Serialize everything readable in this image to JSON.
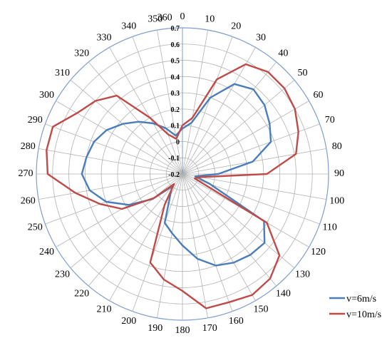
{
  "chart_data": {
    "type": "radar",
    "categories": [
      "0",
      "10",
      "20",
      "30",
      "40",
      "50",
      "60",
      "70",
      "80",
      "90",
      "100",
      "110",
      "120",
      "130",
      "140",
      "150",
      "160",
      "170",
      "180",
      "190",
      "200",
      "210",
      "220",
      "230",
      "240",
      "250",
      "260",
      "270",
      "280",
      "290",
      "300",
      "310",
      "320",
      "330",
      "340",
      "350",
      "360"
    ],
    "radial_ticks": [
      "-0.2",
      "-0.1",
      "0",
      "0.1",
      "0.2",
      "0.3",
      "0.4",
      "0.5",
      "0.6",
      "0.7"
    ],
    "rlim": [
      -0.2,
      0.7
    ],
    "grid": true,
    "legend_position": "bottom-right",
    "series": [
      {
        "name": "v=6m/s",
        "color": "#4a7ebb",
        "values": [
          0.08,
          0.12,
          0.3,
          0.44,
          0.48,
          0.46,
          0.42,
          0.38,
          0.24,
          0.02,
          -0.12,
          -0.02,
          0.38,
          0.46,
          0.45,
          0.43,
          0.4,
          0.33,
          0.24,
          0.17,
          0.12,
          -0.05,
          -0.1,
          0.04,
          0.18,
          0.3,
          0.38,
          0.42,
          0.4,
          0.38,
          0.34,
          0.28,
          0.22,
          0.16,
          0.1,
          0.04,
          0.08
        ]
      },
      {
        "name": "v=10m/s",
        "color": "#be4b48",
        "values": [
          0.1,
          0.15,
          0.42,
          0.58,
          0.62,
          0.62,
          0.6,
          0.56,
          0.51,
          0.32,
          -0.09,
          -0.12,
          0.4,
          0.58,
          0.64,
          0.66,
          0.64,
          0.64,
          0.52,
          0.46,
          0.38,
          0.02,
          -0.12,
          0.03,
          0.23,
          0.34,
          0.47,
          0.63,
          0.65,
          0.65,
          0.55,
          0.5,
          0.43,
          0.2,
          0.06,
          0.02,
          0.1
        ]
      }
    ]
  }
}
